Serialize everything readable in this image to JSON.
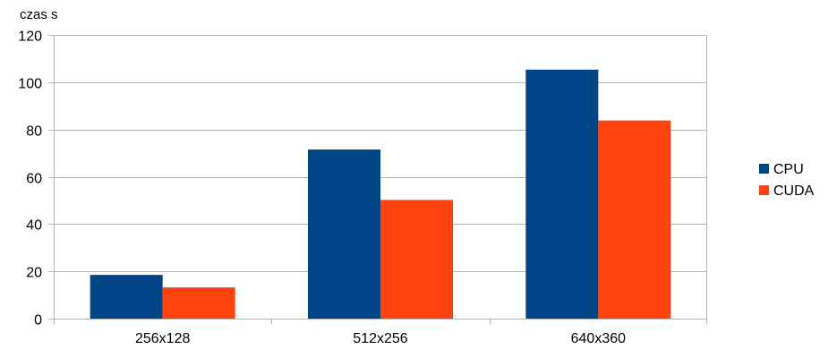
{
  "chart_data": {
    "type": "bar",
    "title": "",
    "xlabel": "",
    "ylabel": "czas s",
    "categories": [
      "256x128",
      "512x256",
      "640x360"
    ],
    "series": [
      {
        "name": "CPU",
        "color": "#004586",
        "values": [
          18.5,
          71.5,
          105.3
        ]
      },
      {
        "name": "CUDA",
        "color": "#ff420e",
        "values": [
          13.2,
          50.2,
          83.8
        ]
      }
    ],
    "ylim": [
      0,
      120
    ],
    "yticks": [
      0,
      20,
      40,
      60,
      80,
      100,
      120
    ],
    "grid": true,
    "legend_position": "right"
  }
}
